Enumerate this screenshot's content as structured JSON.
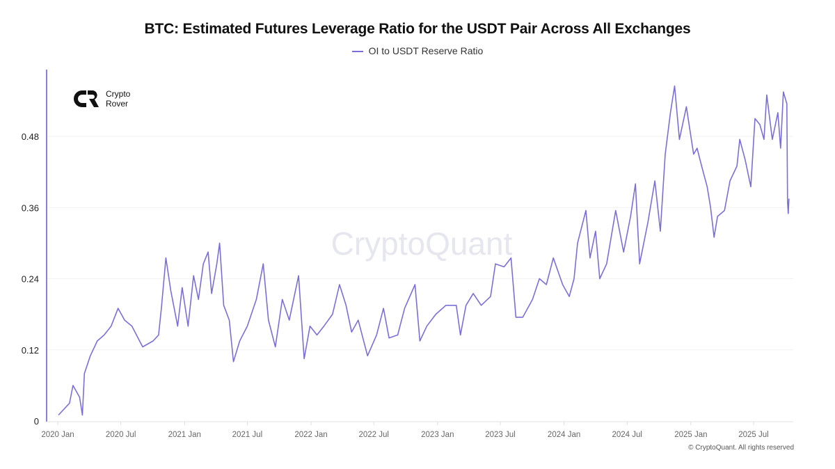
{
  "chart_data": {
    "type": "line",
    "title": "BTC: Estimated Futures Leverage Ratio for the USDT Pair Across All Exchanges",
    "xlabel": "",
    "ylabel": "",
    "ylim": [
      0,
      0.58
    ],
    "xlim": [
      "2019-12-30",
      "2025-10-23"
    ],
    "grid": true,
    "legend_position": "top-center",
    "y_ticks": [
      "0",
      "0.12",
      "0.24",
      "0.36",
      "0.48"
    ],
    "y_tick_values": [
      0,
      0.12,
      0.24,
      0.36,
      0.48
    ],
    "x_ticks": [
      "2020 Jan",
      "2020 Jul",
      "2021 Jan",
      "2021 Jul",
      "2022 Jan",
      "2022 Jul",
      "2023 Jan",
      "2023 Jul",
      "2024 Jan",
      "2024 Jul",
      "2025 Jan",
      "2025 Jul"
    ],
    "x_tick_dates": [
      "2020-01-01",
      "2020-07-01",
      "2021-01-01",
      "2021-07-01",
      "2022-01-01",
      "2022-07-01",
      "2023-01-01",
      "2023-07-01",
      "2024-01-01",
      "2024-07-01",
      "2025-01-01",
      "2025-07-01"
    ],
    "series": [
      {
        "name": "OI to USDT Reserve Ratio",
        "color": "#7a6fd8",
        "x": [
          "2020-01-03",
          "2020-02-04",
          "2020-02-14",
          "2020-03-04",
          "2020-03-12",
          "2020-03-18",
          "2020-04-04",
          "2020-04-24",
          "2020-05-14",
          "2020-06-03",
          "2020-06-23",
          "2020-07-12",
          "2020-08-02",
          "2020-09-02",
          "2020-10-02",
          "2020-10-18",
          "2020-10-26",
          "2020-11-08",
          "2020-11-22",
          "2020-12-12",
          "2020-12-25",
          "2021-01-11",
          "2021-01-27",
          "2021-02-10",
          "2021-02-24",
          "2021-03-10",
          "2021-03-20",
          "2021-04-04",
          "2021-04-12",
          "2021-04-24",
          "2021-05-10",
          "2021-05-22",
          "2021-06-09",
          "2021-07-01",
          "2021-07-27",
          "2021-08-16",
          "2021-08-31",
          "2021-09-20",
          "2021-10-10",
          "2021-10-30",
          "2021-11-26",
          "2021-12-12",
          "2021-12-29",
          "2022-01-18",
          "2022-02-07",
          "2022-03-04",
          "2022-03-24",
          "2022-04-12",
          "2022-04-28",
          "2022-05-17",
          "2022-06-13",
          "2022-07-09",
          "2022-07-29",
          "2022-08-14",
          "2022-09-08",
          "2022-09-28",
          "2022-10-28",
          "2022-11-11",
          "2022-12-01",
          "2022-12-27",
          "2023-01-25",
          "2023-02-24",
          "2023-03-08",
          "2023-03-24",
          "2023-04-14",
          "2023-05-07",
          "2023-06-03",
          "2023-06-17",
          "2023-07-12",
          "2023-08-01",
          "2023-08-15",
          "2023-09-04",
          "2023-10-02",
          "2023-10-22",
          "2023-11-11",
          "2023-12-01",
          "2023-12-28",
          "2024-01-16",
          "2024-01-30",
          "2024-02-09",
          "2024-03-04",
          "2024-03-16",
          "2024-04-01",
          "2024-04-13",
          "2024-05-03",
          "2024-05-29",
          "2024-06-21",
          "2024-07-11",
          "2024-07-25",
          "2024-08-06",
          "2024-08-30",
          "2024-09-19",
          "2024-10-05",
          "2024-10-19",
          "2024-11-03",
          "2024-11-15",
          "2024-11-29",
          "2024-12-19",
          "2025-01-09",
          "2025-01-19",
          "2025-02-01",
          "2025-02-17",
          "2025-02-27",
          "2025-03-09",
          "2025-03-19",
          "2025-04-08",
          "2025-04-24",
          "2025-05-14",
          "2025-05-22",
          "2025-06-07",
          "2025-06-23",
          "2025-07-05",
          "2025-07-19",
          "2025-07-31",
          "2025-08-08",
          "2025-08-24",
          "2025-09-09",
          "2025-09-17",
          "2025-09-25",
          "2025-10-05",
          "2025-10-07",
          "2025-10-09",
          "2025-10-11"
        ],
        "values": [
          0.01,
          0.03,
          0.06,
          0.04,
          0.01,
          0.08,
          0.11,
          0.135,
          0.145,
          0.16,
          0.19,
          0.17,
          0.16,
          0.125,
          0.135,
          0.145,
          0.19,
          0.275,
          0.22,
          0.16,
          0.225,
          0.16,
          0.245,
          0.205,
          0.265,
          0.285,
          0.215,
          0.265,
          0.3,
          0.195,
          0.17,
          0.1,
          0.135,
          0.16,
          0.205,
          0.265,
          0.17,
          0.125,
          0.205,
          0.17,
          0.245,
          0.105,
          0.16,
          0.145,
          0.16,
          0.18,
          0.23,
          0.195,
          0.15,
          0.17,
          0.11,
          0.145,
          0.19,
          0.14,
          0.145,
          0.19,
          0.23,
          0.135,
          0.16,
          0.18,
          0.195,
          0.195,
          0.145,
          0.195,
          0.215,
          0.195,
          0.21,
          0.265,
          0.26,
          0.275,
          0.175,
          0.175,
          0.205,
          0.24,
          0.23,
          0.275,
          0.23,
          0.21,
          0.24,
          0.3,
          0.355,
          0.275,
          0.32,
          0.24,
          0.265,
          0.355,
          0.285,
          0.345,
          0.4,
          0.265,
          0.335,
          0.405,
          0.32,
          0.45,
          0.52,
          0.565,
          0.475,
          0.53,
          0.45,
          0.46,
          0.43,
          0.395,
          0.36,
          0.31,
          0.345,
          0.355,
          0.405,
          0.43,
          0.475,
          0.44,
          0.395,
          0.51,
          0.5,
          0.475,
          0.55,
          0.475,
          0.52,
          0.46,
          0.555,
          0.535,
          0.37,
          0.35,
          0.375
        ]
      }
    ]
  },
  "logo": {
    "line1": "Crypto",
    "line2": "Rover"
  },
  "watermark": "CryptoQuant",
  "copyright": "© CryptoQuant. All rights reserved"
}
